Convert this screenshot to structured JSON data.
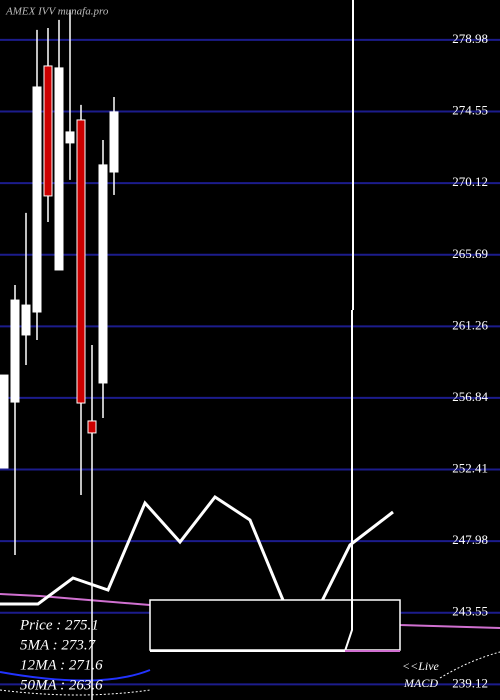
{
  "chart_data": {
    "type": "candlestick",
    "title": "AMEX IVV munafa.pro",
    "open": [
      252.5,
      256.58,
      260.73,
      262.15,
      277.37,
      264.75,
      272.61,
      274.03,
      255.41,
      257.76,
      270.81
    ],
    "high": [
      258.25,
      263.82,
      268.28,
      279.6,
      279.72,
      280.22,
      280.84,
      274.96,
      260.11,
      272.79,
      275.45
    ],
    "low": [
      252.5,
      247.12,
      258.87,
      260.42,
      267.72,
      264.75,
      270.32,
      250.83,
      238.15,
      255.59,
      269.39
    ],
    "close": [
      258.25,
      262.89,
      262.58,
      276.07,
      269.33,
      277.25,
      273.29,
      256.52,
      254.67,
      271.25,
      274.53
    ],
    "up_color": "#ffffff",
    "down_color": "#cc0000",
    "ylim": [
      238.15,
      281.45
    ],
    "yticks": [
      278.98,
      274.55,
      270.12,
      265.69,
      261.26,
      256.84,
      252.41,
      247.98,
      243.55,
      239.12
    ],
    "grid": true,
    "grid_color": "#1c1c8c",
    "stats": [
      "Price   : 275.1",
      "5MA : 273.7",
      "12MA : 271.6",
      "50MA : 263.6"
    ],
    "live_label": "<<Live",
    "macd_label": "MACD"
  }
}
